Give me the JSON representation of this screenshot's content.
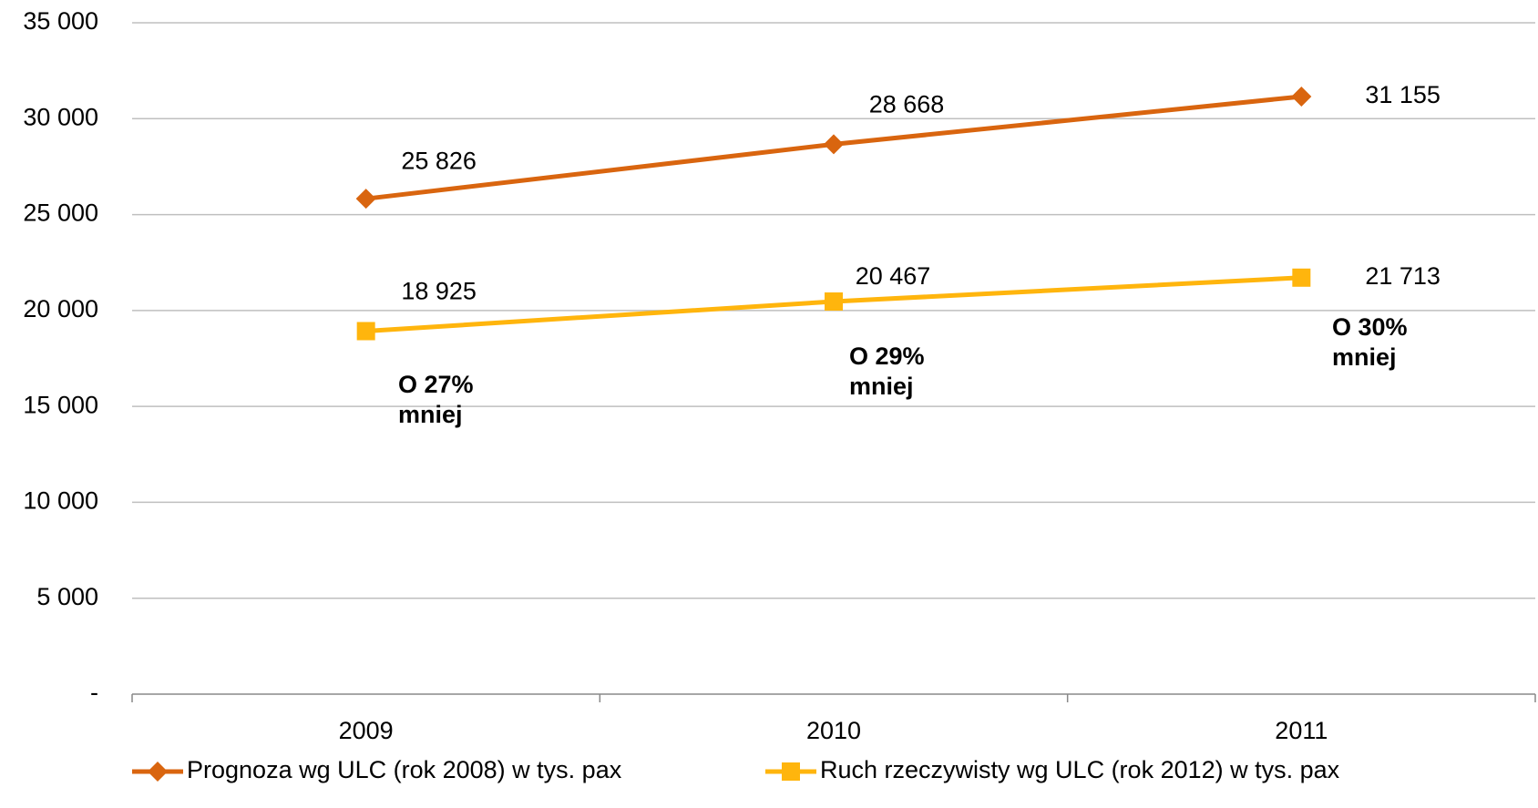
{
  "chart_data": {
    "type": "line",
    "categories": [
      "2009",
      "2010",
      "2011"
    ],
    "series": [
      {
        "name": "Prognoza wg ULC (rok 2008) w tys. pax",
        "color": "#d9650f",
        "marker": "diamond",
        "values": [
          25826,
          28668,
          31155
        ],
        "value_labels": [
          "25 826",
          "28 668",
          "31 155"
        ]
      },
      {
        "name": "Ruch rzeczywisty wg ULC (rok 2012) w tys. pax",
        "color": "#ffb50d",
        "marker": "square",
        "values": [
          18925,
          20467,
          21713
        ],
        "value_labels": [
          "18 925",
          "20 467",
          "21 713"
        ]
      }
    ],
    "annotations": [
      [
        "O 27%",
        "mniej"
      ],
      [
        "O 29%",
        "mniej"
      ],
      [
        "O 30%",
        "mniej"
      ]
    ],
    "ylim": [
      0,
      35000
    ],
    "yticks": [
      {
        "value": 0,
        "label": "-"
      },
      {
        "value": 5000,
        "label": "5 000"
      },
      {
        "value": 10000,
        "label": "10 000"
      },
      {
        "value": 15000,
        "label": "15 000"
      },
      {
        "value": 20000,
        "label": "20 000"
      },
      {
        "value": 25000,
        "label": "25 000"
      },
      {
        "value": 30000,
        "label": "30 000"
      },
      {
        "value": 35000,
        "label": "35 000"
      }
    ],
    "grid": true,
    "legend": "bottom"
  }
}
